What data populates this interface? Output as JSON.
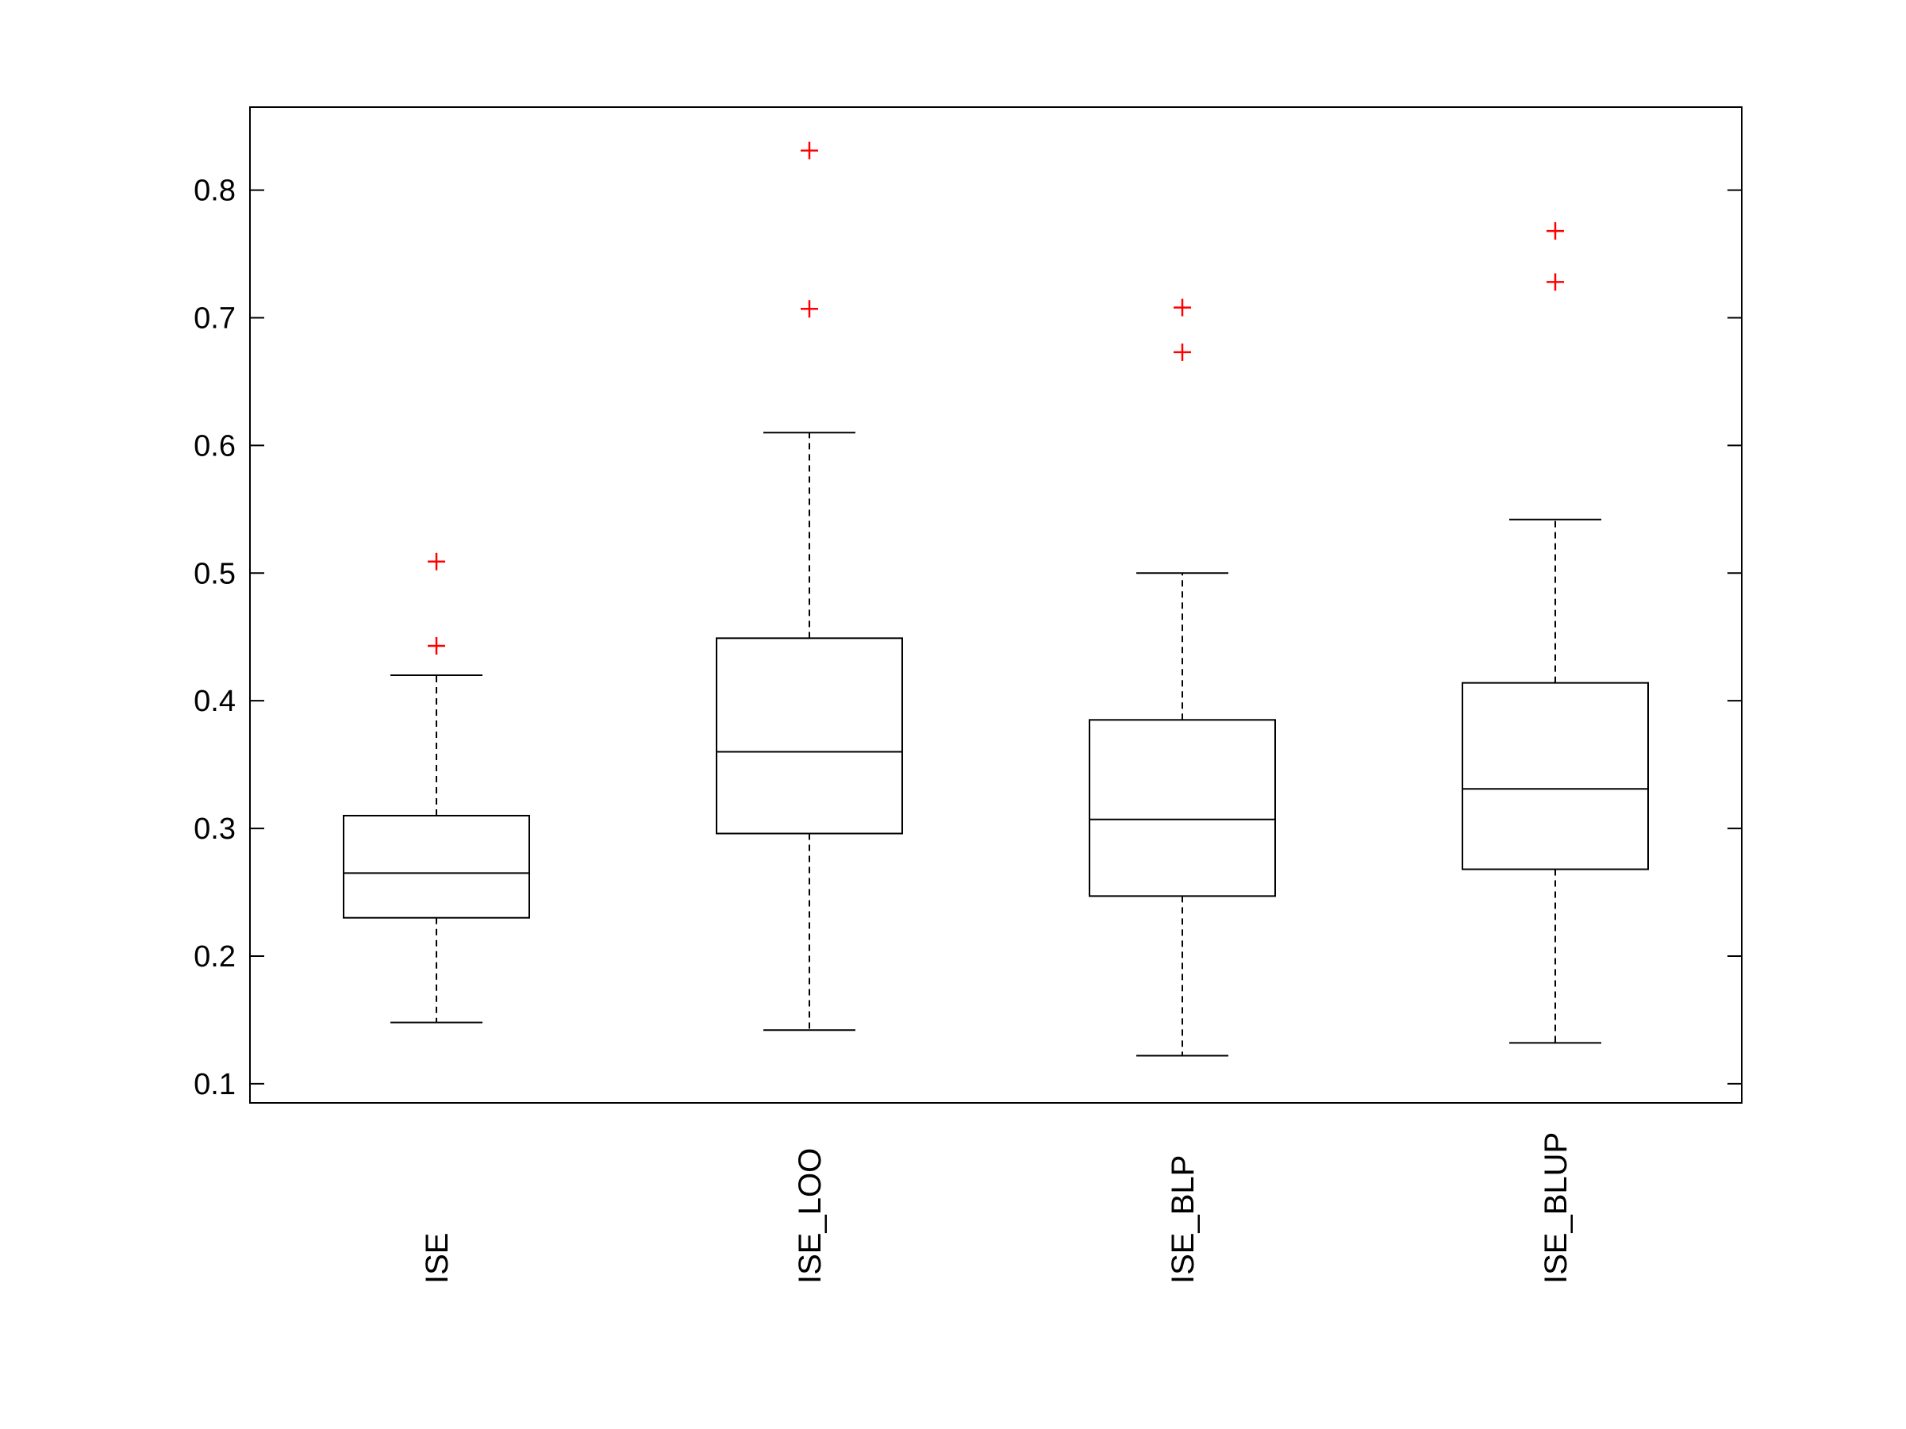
{
  "chart_data": {
    "type": "box",
    "title": "",
    "xlabel": "",
    "ylabel": "",
    "ylim": [
      0.085,
      0.865
    ],
    "yticks": [
      0.1,
      0.2,
      0.3,
      0.4,
      0.5,
      0.6,
      0.7,
      0.8
    ],
    "ytick_labels": [
      "0.1",
      "0.2",
      "0.3",
      "0.4",
      "0.5",
      "0.6",
      "0.7",
      "0.8"
    ],
    "grid": false,
    "legend": "none",
    "categories": [
      "ISE",
      "ISE_LOO",
      "ISE_BLP",
      "ISE_BLUP"
    ],
    "boxes": [
      {
        "category": "ISE",
        "whisker_low": 0.148,
        "q1": 0.23,
        "median": 0.265,
        "q3": 0.31,
        "whisker_high": 0.42,
        "outliers": [
          0.443,
          0.509
        ]
      },
      {
        "category": "ISE_LOO",
        "whisker_low": 0.142,
        "q1": 0.296,
        "median": 0.36,
        "q3": 0.449,
        "whisker_high": 0.61,
        "outliers": [
          0.707,
          0.831
        ]
      },
      {
        "category": "ISE_BLP",
        "whisker_low": 0.122,
        "q1": 0.247,
        "median": 0.307,
        "q3": 0.385,
        "whisker_high": 0.5,
        "outliers": [
          0.673,
          0.708
        ]
      },
      {
        "category": "ISE_BLUP",
        "whisker_low": 0.132,
        "q1": 0.268,
        "median": 0.331,
        "q3": 0.414,
        "whisker_high": 0.542,
        "outliers": [
          0.728,
          0.768
        ]
      }
    ],
    "colors": {
      "box": "#000000",
      "outlier": "#ff0000",
      "axes": "#000000"
    }
  }
}
